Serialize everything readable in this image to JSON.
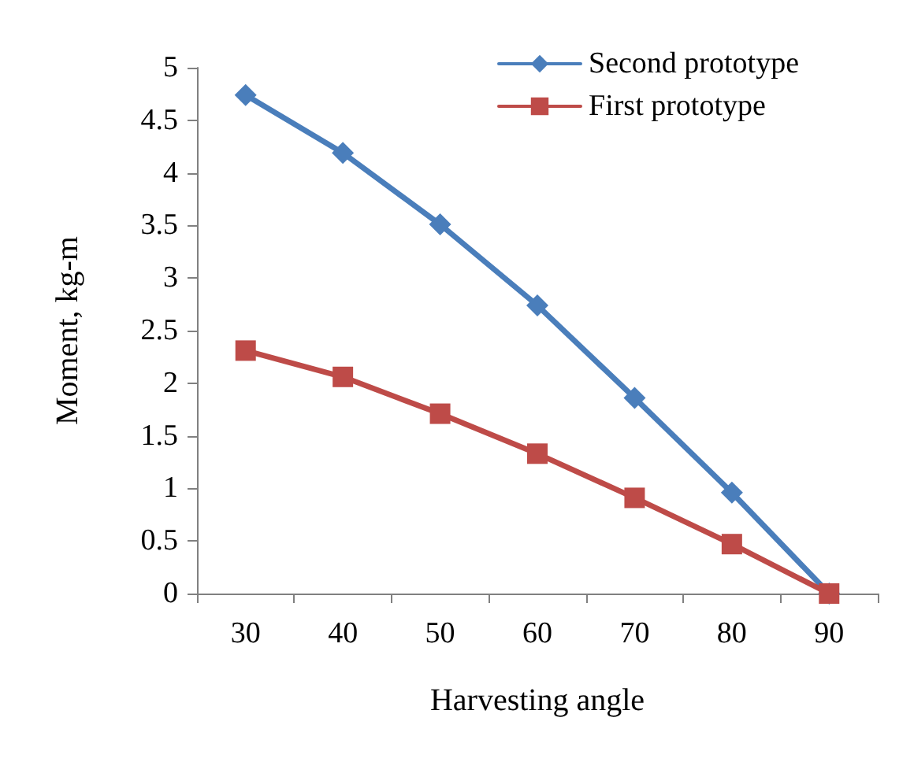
{
  "chart_data": {
    "type": "line",
    "xlabel": "Harvesting angle",
    "ylabel": "Moment, kg-m",
    "categories": [
      "30",
      "40",
      "50",
      "60",
      "70",
      "80",
      "90"
    ],
    "series": [
      {
        "name": "Second prototype",
        "color": "#4a7ebb",
        "marker": "diamond",
        "values": [
          4.74,
          4.19,
          3.51,
          2.74,
          1.86,
          0.96,
          0
        ]
      },
      {
        "name": "First prototype",
        "color": "#be4b48",
        "marker": "square",
        "values": [
          2.31,
          2.06,
          1.71,
          1.33,
          0.91,
          0.47,
          0
        ]
      }
    ],
    "ylim": [
      0,
      5
    ],
    "yticks": [
      0,
      0.5,
      1,
      1.5,
      2,
      2.5,
      3,
      3.5,
      4,
      4.5,
      5
    ],
    "grid": false,
    "legend": "top right",
    "line_style": "solid"
  }
}
